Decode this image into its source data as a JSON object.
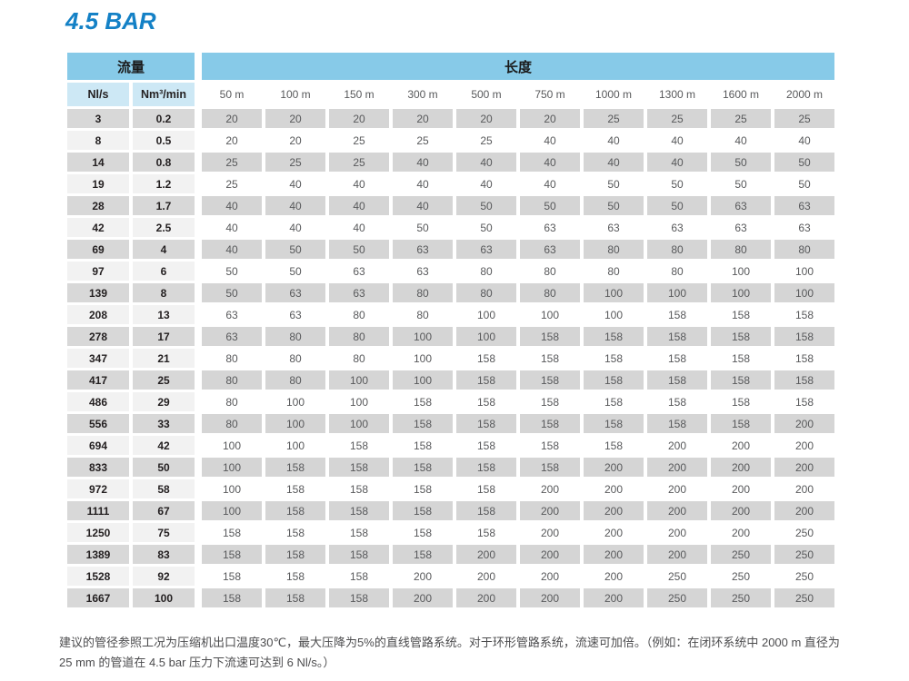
{
  "title": "4.5 BAR",
  "table": {
    "flow_group_label": "流量",
    "length_group_label": "长度",
    "flow_columns": [
      "Nl/s",
      "Nm³/min"
    ],
    "length_columns": [
      "50 m",
      "100 m",
      "150 m",
      "300 m",
      "500 m",
      "750 m",
      "1000 m",
      "1300 m",
      "1600 m",
      "2000 m"
    ],
    "rows": [
      {
        "nl_s": "3",
        "nm3_min": "0.2",
        "values": [
          "20",
          "20",
          "20",
          "20",
          "20",
          "20",
          "25",
          "25",
          "25",
          "25"
        ]
      },
      {
        "nl_s": "8",
        "nm3_min": "0.5",
        "values": [
          "20",
          "20",
          "25",
          "25",
          "25",
          "40",
          "40",
          "40",
          "40",
          "40"
        ]
      },
      {
        "nl_s": "14",
        "nm3_min": "0.8",
        "values": [
          "25",
          "25",
          "25",
          "40",
          "40",
          "40",
          "40",
          "40",
          "50",
          "50"
        ]
      },
      {
        "nl_s": "19",
        "nm3_min": "1.2",
        "values": [
          "25",
          "40",
          "40",
          "40",
          "40",
          "40",
          "50",
          "50",
          "50",
          "50"
        ]
      },
      {
        "nl_s": "28",
        "nm3_min": "1.7",
        "values": [
          "40",
          "40",
          "40",
          "40",
          "50",
          "50",
          "50",
          "50",
          "63",
          "63"
        ]
      },
      {
        "nl_s": "42",
        "nm3_min": "2.5",
        "values": [
          "40",
          "40",
          "40",
          "50",
          "50",
          "63",
          "63",
          "63",
          "63",
          "63"
        ]
      },
      {
        "nl_s": "69",
        "nm3_min": "4",
        "values": [
          "40",
          "50",
          "50",
          "63",
          "63",
          "63",
          "80",
          "80",
          "80",
          "80"
        ]
      },
      {
        "nl_s": "97",
        "nm3_min": "6",
        "values": [
          "50",
          "50",
          "63",
          "63",
          "80",
          "80",
          "80",
          "80",
          "100",
          "100"
        ]
      },
      {
        "nl_s": "139",
        "nm3_min": "8",
        "values": [
          "50",
          "63",
          "63",
          "80",
          "80",
          "80",
          "100",
          "100",
          "100",
          "100"
        ]
      },
      {
        "nl_s": "208",
        "nm3_min": "13",
        "values": [
          "63",
          "63",
          "80",
          "80",
          "100",
          "100",
          "100",
          "158",
          "158",
          "158"
        ]
      },
      {
        "nl_s": "278",
        "nm3_min": "17",
        "values": [
          "63",
          "80",
          "80",
          "100",
          "100",
          "158",
          "158",
          "158",
          "158",
          "158"
        ]
      },
      {
        "nl_s": "347",
        "nm3_min": "21",
        "values": [
          "80",
          "80",
          "80",
          "100",
          "158",
          "158",
          "158",
          "158",
          "158",
          "158"
        ]
      },
      {
        "nl_s": "417",
        "nm3_min": "25",
        "values": [
          "80",
          "80",
          "100",
          "100",
          "158",
          "158",
          "158",
          "158",
          "158",
          "158"
        ]
      },
      {
        "nl_s": "486",
        "nm3_min": "29",
        "values": [
          "80",
          "100",
          "100",
          "158",
          "158",
          "158",
          "158",
          "158",
          "158",
          "158"
        ]
      },
      {
        "nl_s": "556",
        "nm3_min": "33",
        "values": [
          "80",
          "100",
          "100",
          "158",
          "158",
          "158",
          "158",
          "158",
          "158",
          "200"
        ]
      },
      {
        "nl_s": "694",
        "nm3_min": "42",
        "values": [
          "100",
          "100",
          "158",
          "158",
          "158",
          "158",
          "158",
          "200",
          "200",
          "200"
        ]
      },
      {
        "nl_s": "833",
        "nm3_min": "50",
        "values": [
          "100",
          "158",
          "158",
          "158",
          "158",
          "158",
          "200",
          "200",
          "200",
          "200"
        ]
      },
      {
        "nl_s": "972",
        "nm3_min": "58",
        "values": [
          "100",
          "158",
          "158",
          "158",
          "158",
          "200",
          "200",
          "200",
          "200",
          "200"
        ]
      },
      {
        "nl_s": "1111",
        "nm3_min": "67",
        "values": [
          "100",
          "158",
          "158",
          "158",
          "158",
          "200",
          "200",
          "200",
          "200",
          "200"
        ]
      },
      {
        "nl_s": "1250",
        "nm3_min": "75",
        "values": [
          "158",
          "158",
          "158",
          "158",
          "158",
          "200",
          "200",
          "200",
          "200",
          "250"
        ]
      },
      {
        "nl_s": "1389",
        "nm3_min": "83",
        "values": [
          "158",
          "158",
          "158",
          "158",
          "200",
          "200",
          "200",
          "200",
          "250",
          "250"
        ]
      },
      {
        "nl_s": "1528",
        "nm3_min": "92",
        "values": [
          "158",
          "158",
          "158",
          "200",
          "200",
          "200",
          "200",
          "250",
          "250",
          "250"
        ]
      },
      {
        "nl_s": "1667",
        "nm3_min": "100",
        "values": [
          "158",
          "158",
          "158",
          "200",
          "200",
          "200",
          "200",
          "250",
          "250",
          "250"
        ]
      }
    ]
  },
  "footnote": "建议的管径参照工况为压缩机出口温度30℃，最大压降为5%的直线管路系统。对于环形管路系统，流速可加倍。（例如：在闭环系统中 2000 m 直径为 25 mm 的管道在 4.5 bar 压力下流速可达到 6 Nl/s。）",
  "colors": {
    "title_blue": "#1481c6",
    "header_blue": "#87cae8",
    "subheader_blue": "#cde8f5",
    "row_grey": "#d5d5d5",
    "flow_row_light": "#f2f2f2"
  }
}
